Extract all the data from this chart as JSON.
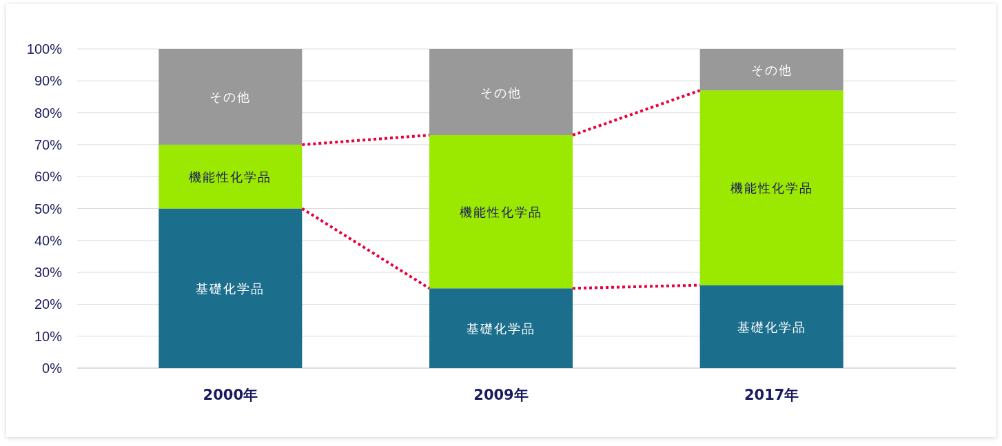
{
  "chart_data": {
    "type": "bar",
    "stacked": true,
    "data_labels": false,
    "grid": "y",
    "categories": [
      "2000年",
      "2009年",
      "2017年"
    ],
    "ylim": [
      0,
      100
    ],
    "yticks": [
      {
        "value": 0,
        "label": "0%"
      },
      {
        "value": 10,
        "label": "10%"
      },
      {
        "value": 20,
        "label": "20%"
      },
      {
        "value": 30,
        "label": "30%"
      },
      {
        "value": 40,
        "label": "40%"
      },
      {
        "value": 50,
        "label": "50%"
      },
      {
        "value": 60,
        "label": "60%"
      },
      {
        "value": 70,
        "label": "70%"
      },
      {
        "value": 80,
        "label": "80%"
      },
      {
        "value": 90,
        "label": "90%"
      },
      {
        "value": 100,
        "label": "100%"
      }
    ],
    "series": [
      {
        "name": "基礎化学品",
        "color": "#1b6e8c",
        "values": [
          50,
          25,
          26
        ]
      },
      {
        "name": "機能性化学品",
        "color": "#9be800",
        "values": [
          20,
          48,
          61
        ]
      },
      {
        "name": "その他",
        "color": "#999999",
        "values": [
          30,
          27,
          13
        ]
      }
    ]
  }
}
